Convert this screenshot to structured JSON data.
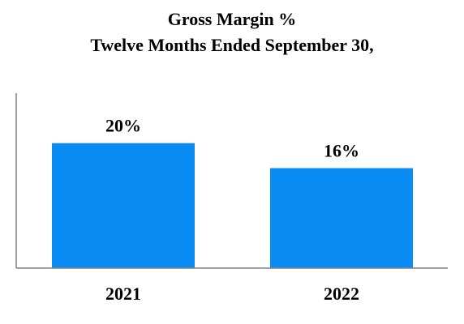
{
  "chart_data": {
    "type": "bar",
    "title": "Gross Margin %",
    "subtitle": "Twelve Months Ended September 30,",
    "categories": [
      "2021",
      "2022"
    ],
    "values": [
      20,
      16
    ],
    "data_labels": [
      "20%",
      "16%"
    ],
    "ylim": [
      0,
      28
    ],
    "grid": false,
    "legend": "none",
    "bar_color": "#0A8CF5",
    "axis_color": "#808080"
  }
}
